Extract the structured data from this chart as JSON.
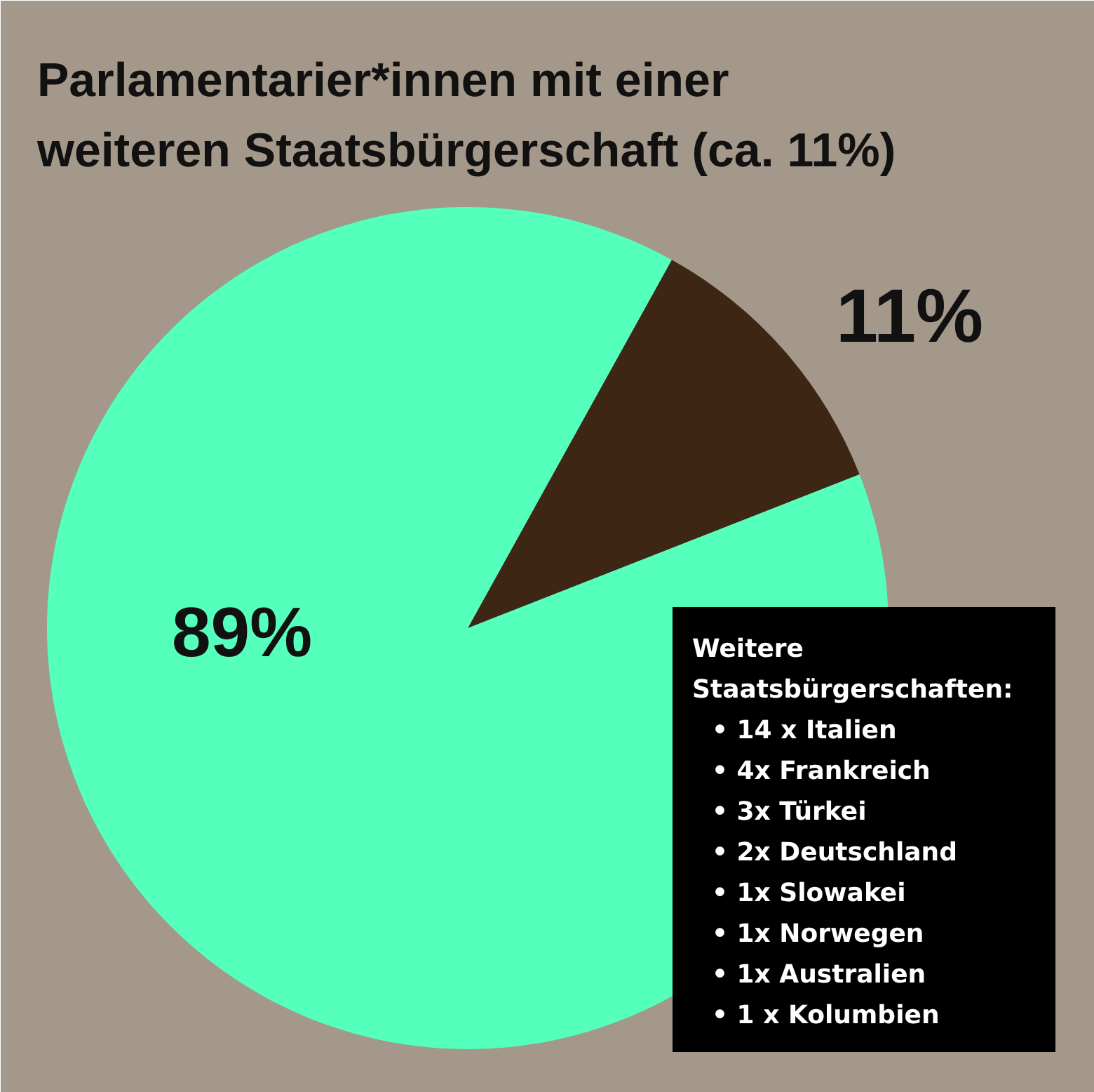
{
  "chart_data": {
    "type": "pie",
    "title": "Parlamentarier*innen mit einer weiteren Staatsbürgerschaft (ca. 11%)",
    "categories": [
      null,
      null
    ],
    "values": [
      11,
      89
    ],
    "colors": [
      "#3d2614",
      "#55ffbc"
    ],
    "value_labels": [
      "11%",
      "89%"
    ],
    "annotations": [
      "Weitere Staatsbürgerschaften:",
      "• 14 x Italien",
      "• 4x Frankreich",
      "• 3x Türkei",
      "• 2x Deutschland",
      "• 1x Slowakei",
      "• 1x Norwegen",
      "• 1x Australien",
      "• 1 x Kolumbien"
    ]
  }
}
